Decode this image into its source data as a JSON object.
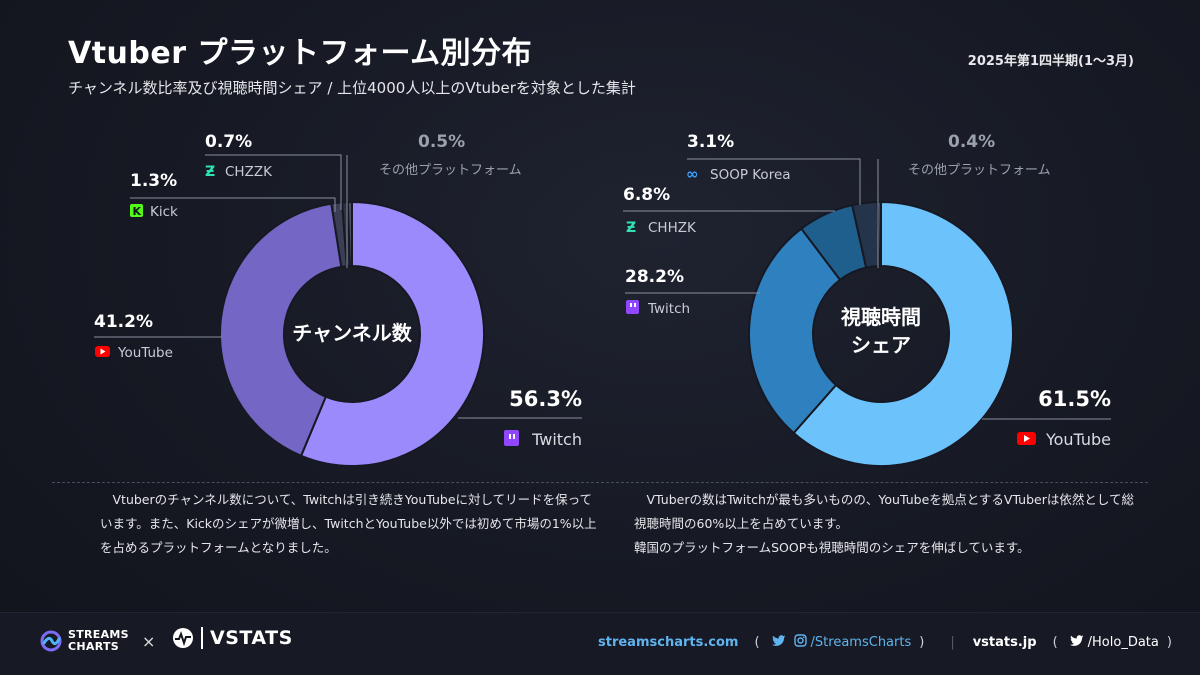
{
  "header": {
    "title": "Vtuber プラットフォーム別分布",
    "subtitle": "チャンネル数比率及び視聴時間シェア / 上位4000人以上のVtuberを対象とした集計",
    "period": "2025年第1四半期(1〜3月)"
  },
  "chart_data": [
    {
      "type": "pie",
      "center_label": "チャンネル数",
      "slices": [
        {
          "label": "Twitch",
          "value": 56.3,
          "display": "56.3%",
          "color": "#9b8afb",
          "icon": "twitch-icon"
        },
        {
          "label": "YouTube",
          "value": 41.2,
          "display": "41.2%",
          "color": "#7366c4",
          "icon": "youtube-icon"
        },
        {
          "label": "Kick",
          "value": 1.3,
          "display": "1.3%",
          "color": "#3a3f55",
          "icon": "kick-icon"
        },
        {
          "label": "CHZZK",
          "value": 0.7,
          "display": "0.7%",
          "color": "#2c3040",
          "icon": "chzzk-icon"
        },
        {
          "label": "その他プラットフォーム",
          "value": 0.5,
          "display": "0.5%",
          "color": "#4a4f62",
          "icon": ""
        }
      ]
    },
    {
      "type": "pie",
      "center_label": "視聴時間\nシェア",
      "slices": [
        {
          "label": "YouTube",
          "value": 61.5,
          "display": "61.5%",
          "color": "#6cc2fb",
          "icon": "youtube-icon"
        },
        {
          "label": "Twitch",
          "value": 28.2,
          "display": "28.2%",
          "color": "#2f80bf",
          "icon": "twitch-icon"
        },
        {
          "label": "CHHZK",
          "value": 6.8,
          "display": "6.8%",
          "color": "#1f5f8e",
          "icon": "chzzk-icon"
        },
        {
          "label": "SOOP Korea",
          "value": 3.1,
          "display": "3.1%",
          "color": "#24344a",
          "icon": "soop-icon"
        },
        {
          "label": "その他プラットフォーム",
          "value": 0.4,
          "display": "0.4%",
          "color": "#3d4a5e",
          "icon": ""
        }
      ]
    }
  ],
  "descriptions": {
    "left": "Vtuberのチャンネル数について、Twitchは引き続きYouTubeに対してリードを保っています。また、Kickのシェアが微増し、TwitchとYouTube以外では初めて市場の1%以上を占めるプラットフォームとなりました。",
    "right_line1": "VTuberの数はTwitchが最も多いものの、YouTubeを拠点とするVTuberは依然として総視聴時間の60%以上を占めています。",
    "right_line2": "韓国のプラットフォームSOOPも視聴時間のシェアを伸ばしています。"
  },
  "footer": {
    "streams_brand_line1": "STREAMS",
    "streams_brand_line2": "CHARTS",
    "times": "×",
    "vstats_brand": "VSTATS",
    "streamscharts_url": "streamscharts.com",
    "streamscharts_handle": "/StreamsCharts",
    "vstats_url": "vstats.jp",
    "vstats_handle": "/Holo_Data",
    "open_paren": "(",
    "close_paren": ")",
    "separator": "|"
  }
}
